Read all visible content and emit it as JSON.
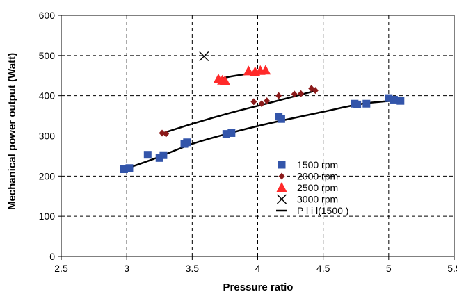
{
  "chart_data": {
    "type": "scatter",
    "xlabel": "Pressure ratio",
    "ylabel": "Mechanical power output (Watt)",
    "xlim": [
      2.5,
      5.5
    ],
    "ylim": [
      0,
      600
    ],
    "x_ticks": [
      2.5,
      3,
      3.5,
      4,
      4.5,
      5,
      5.5
    ],
    "x_tick_labels": [
      "2.5",
      "3",
      "3.5",
      "4",
      "4.5",
      "5",
      "5.5"
    ],
    "y_ticks": [
      0,
      100,
      200,
      300,
      400,
      500,
      600
    ],
    "y_tick_labels": [
      "0",
      "100",
      "200",
      "300",
      "400",
      "500",
      "600"
    ],
    "grid": true,
    "legend_position": "right",
    "series": [
      {
        "name": "1500 rpm",
        "marker": "square",
        "color": "#3355aa",
        "points": [
          [
            2.98,
            217
          ],
          [
            3.02,
            220
          ],
          [
            3.16,
            253
          ],
          [
            3.25,
            245
          ],
          [
            3.28,
            252
          ],
          [
            3.44,
            280
          ],
          [
            3.46,
            284
          ],
          [
            3.76,
            305
          ],
          [
            3.8,
            307
          ],
          [
            4.16,
            348
          ],
          [
            4.18,
            342
          ],
          [
            4.74,
            380
          ],
          [
            4.76,
            378
          ],
          [
            4.83,
            380
          ],
          [
            5.0,
            394
          ],
          [
            5.04,
            390
          ],
          [
            5.09,
            387
          ]
        ]
      },
      {
        "name": "2000 rpm",
        "marker": "diamond",
        "color": "#8b1a1a",
        "points": [
          [
            3.27,
            307
          ],
          [
            3.3,
            305
          ],
          [
            3.97,
            385
          ],
          [
            4.03,
            380
          ],
          [
            4.07,
            387
          ],
          [
            4.16,
            400
          ],
          [
            4.28,
            404
          ],
          [
            4.33,
            405
          ],
          [
            4.41,
            418
          ],
          [
            4.44,
            413
          ]
        ]
      },
      {
        "name": "2500 rpm",
        "marker": "triangle",
        "color": "#ff2a2a",
        "points": [
          [
            3.7,
            441
          ],
          [
            3.73,
            438
          ],
          [
            3.75,
            437
          ],
          [
            3.93,
            461
          ],
          [
            3.98,
            459
          ],
          [
            4.02,
            462
          ],
          [
            4.06,
            463
          ]
        ]
      },
      {
        "name": "3000 rpm",
        "marker": "x",
        "color": "#000000",
        "points": [
          [
            3.59,
            498
          ]
        ]
      }
    ],
    "fits": [
      {
        "name": "P l i l(1500 )",
        "color": "#000000",
        "points": [
          [
            2.97,
            216
          ],
          [
            3.2,
            242
          ],
          [
            3.5,
            280
          ],
          [
            3.8,
            308
          ],
          [
            4.1,
            332
          ],
          [
            4.5,
            360
          ],
          [
            4.8,
            380
          ],
          [
            5.1,
            389
          ]
        ]
      },
      {
        "color": "#000000",
        "points": [
          [
            3.26,
            305
          ],
          [
            3.5,
            330
          ],
          [
            3.8,
            358
          ],
          [
            4.1,
            383
          ],
          [
            4.45,
            413
          ]
        ]
      },
      {
        "color": "#000000",
        "points": [
          [
            3.69,
            440
          ],
          [
            3.8,
            448
          ],
          [
            3.95,
            455
          ],
          [
            4.07,
            458
          ]
        ]
      }
    ]
  }
}
